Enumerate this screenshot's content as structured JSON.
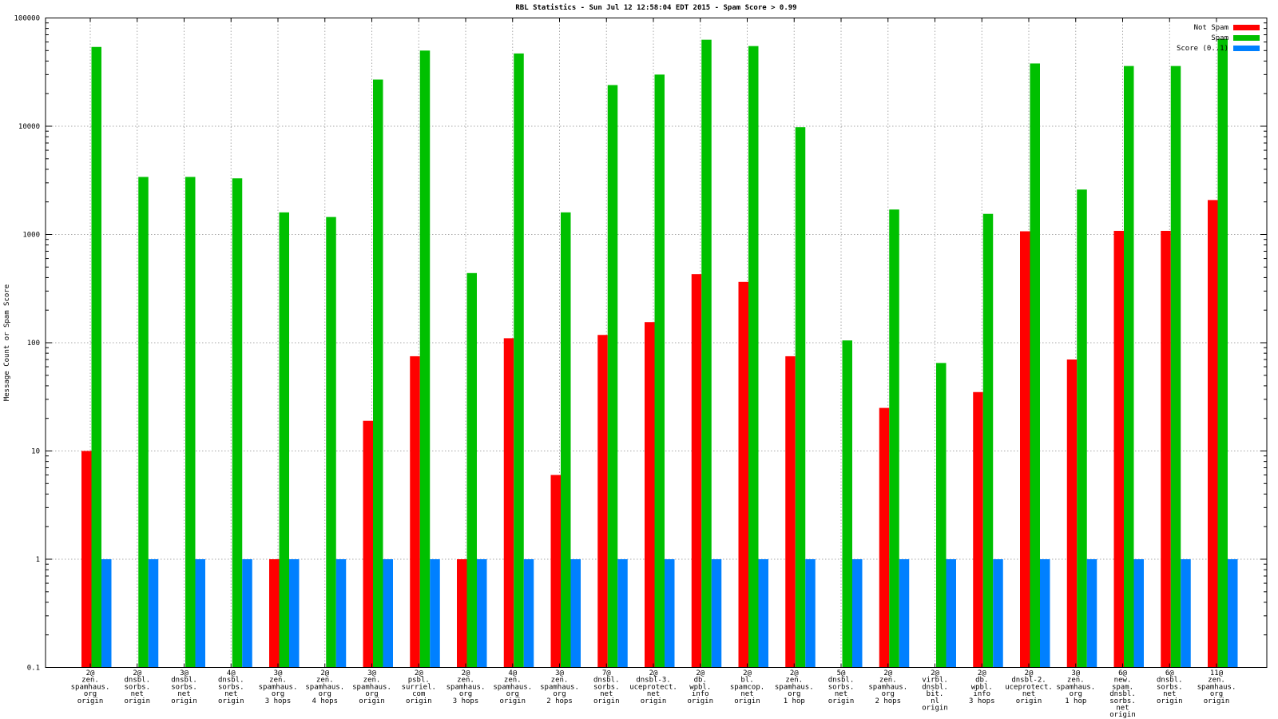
{
  "title": "RBL Statistics - Sun Jul 12 12:58:04 EDT 2015 - Spam Score > 0.99",
  "ylabel": "Message Count or Spam Score",
  "legend": [
    {
      "label": "Not Spam",
      "color": "#ff0000"
    },
    {
      "label": "Spam",
      "color": "#00c000"
    },
    {
      "label": "Score (0..1)",
      "color": "#0080ff"
    }
  ],
  "colors": {
    "not_spam": "#ff0000",
    "spam": "#00c000",
    "score": "#0080ff",
    "grid": "#a8a8a8",
    "border": "#000000"
  },
  "chart_data": {
    "type": "bar",
    "scale": "log",
    "ylim": [
      0.1,
      100000
    ],
    "ytick_labels": [
      "0.1",
      "1",
      "10",
      "100",
      "1000",
      "10000",
      "100000"
    ],
    "grid": true,
    "legend_position": "top-right",
    "categories": [
      [
        "2@",
        "zen.",
        "spamhaus.",
        "org",
        "origin"
      ],
      [
        "2@",
        "dnsbl.",
        "sorbs.",
        "net",
        "origin"
      ],
      [
        "3@",
        "dnsbl.",
        "sorbs.",
        "net",
        "origin"
      ],
      [
        "4@",
        "dnsbl.",
        "sorbs.",
        "net",
        "origin"
      ],
      [
        "3@",
        "zen.",
        "spamhaus.",
        "org",
        "3 hops"
      ],
      [
        "2@",
        "zen.",
        "spamhaus.",
        "org",
        "4 hops"
      ],
      [
        "3@",
        "zen.",
        "spamhaus.",
        "org",
        "origin"
      ],
      [
        "2@",
        "psbl.",
        "surriel.",
        "com",
        "origin"
      ],
      [
        "2@",
        "zen.",
        "spamhaus.",
        "org",
        "3 hops"
      ],
      [
        "4@",
        "zen.",
        "spamhaus.",
        "org",
        "origin"
      ],
      [
        "3@",
        "zen.",
        "spamhaus.",
        "org",
        "2 hops"
      ],
      [
        "7@",
        "dnsbl.",
        "sorbs.",
        "net",
        "origin"
      ],
      [
        "2@",
        "dnsbl-3.",
        "uceprotect.",
        "net",
        "origin"
      ],
      [
        "2@",
        "db.",
        "wpbl.",
        "info",
        "origin"
      ],
      [
        "2@",
        "bl.",
        "spamcop.",
        "net",
        "origin"
      ],
      [
        "2@",
        "zen.",
        "spamhaus.",
        "org",
        "1 hop"
      ],
      [
        "5@",
        "dnsbl.",
        "sorbs.",
        "net",
        "origin"
      ],
      [
        "2@",
        "zen.",
        "spamhaus.",
        "org",
        "2 hops"
      ],
      [
        "2@",
        "virbl.",
        "dnsbl.",
        "bit.",
        "nl",
        "origin"
      ],
      [
        "2@",
        "db.",
        "wpbl.",
        "info",
        "3 hops"
      ],
      [
        "2@",
        "dnsbl-2.",
        "uceprotect.",
        "net",
        "origin"
      ],
      [
        "3@",
        "zen.",
        "spamhaus.",
        "org",
        "1 hop"
      ],
      [
        "6@",
        "new.",
        "spam.",
        "dnsbl.",
        "sorbs.",
        "net",
        "origin"
      ],
      [
        "6@",
        "dnsbl.",
        "sorbs.",
        "net",
        "origin"
      ],
      [
        "11@",
        "zen.",
        "spamhaus.",
        "org",
        "origin"
      ]
    ],
    "series": [
      {
        "name": "Not Spam",
        "color": "#ff0000",
        "values": [
          10,
          null,
          null,
          null,
          1,
          null,
          19,
          75,
          1,
          110,
          6,
          118,
          155,
          430,
          365,
          75,
          null,
          25,
          null,
          35,
          1070,
          70,
          1080,
          1080,
          2080
        ]
      },
      {
        "name": "Spam",
        "color": "#00c000",
        "values": [
          54000,
          3400,
          3400,
          3300,
          1600,
          1450,
          27000,
          50000,
          440,
          47000,
          1600,
          24000,
          30000,
          63000,
          55000,
          9800,
          105,
          1700,
          65,
          1550,
          38000,
          2600,
          36000,
          36000,
          64000
        ]
      },
      {
        "name": "Score (0..1)",
        "color": "#0080ff",
        "values": [
          1,
          1,
          1,
          1,
          1,
          1,
          1,
          1,
          1,
          1,
          1,
          1,
          1,
          1,
          1,
          1,
          1,
          1,
          1,
          1,
          1,
          1,
          1,
          1,
          1
        ]
      }
    ]
  }
}
